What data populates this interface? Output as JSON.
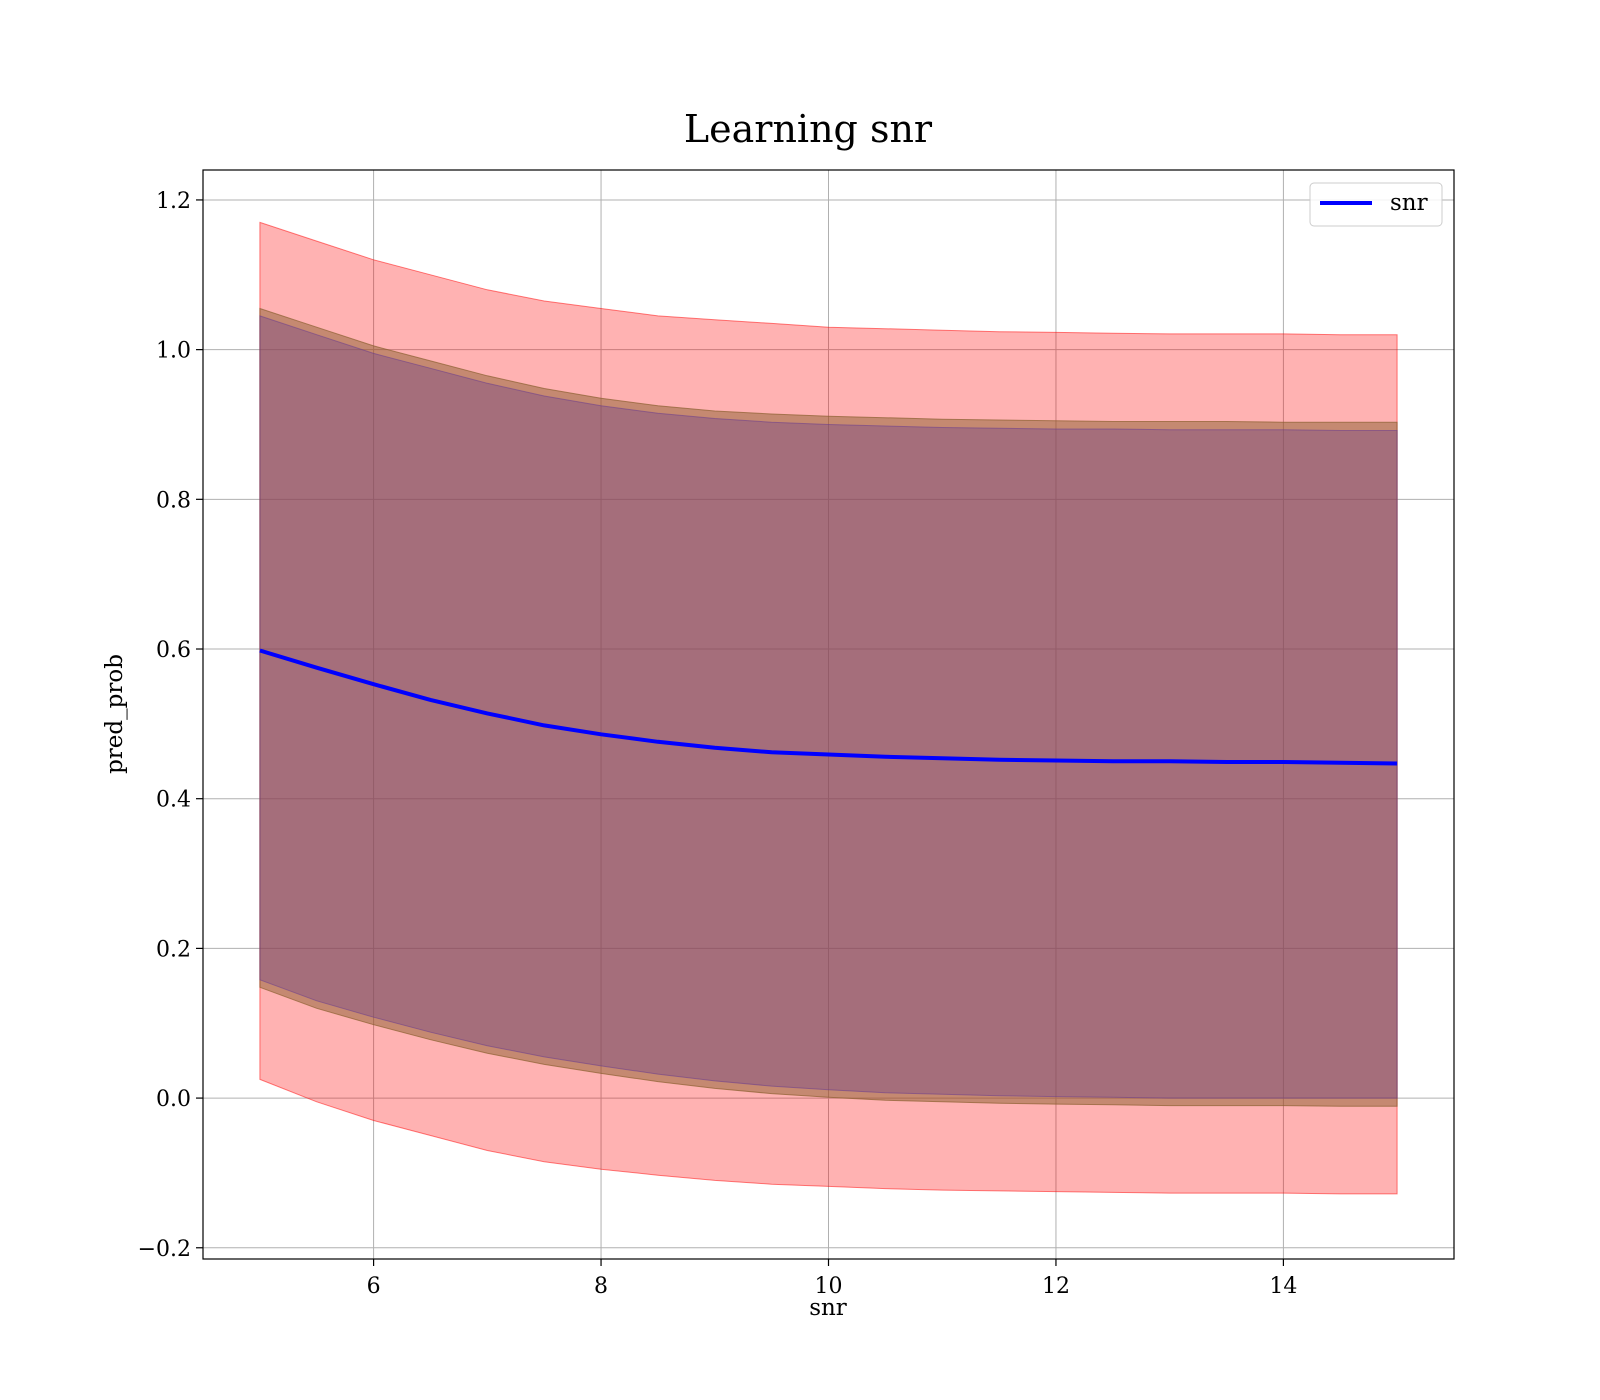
{
  "chart_data": {
    "type": "line",
    "title": "Learning snr",
    "xlabel": "snr",
    "ylabel": "pred_prob",
    "xlim": [
      4.5,
      15.5
    ],
    "ylim": [
      -0.215,
      1.24
    ],
    "xticks": [
      6,
      8,
      10,
      12,
      14
    ],
    "yticks": [
      -0.2,
      0.0,
      0.2,
      0.4,
      0.6,
      0.8,
      1.0,
      1.2
    ],
    "grid": true,
    "legend": {
      "placement": "top-right",
      "entries": [
        "snr"
      ]
    },
    "series": [
      {
        "name": "snr",
        "color": "#0000ff",
        "x": [
          5.0,
          5.5,
          6.0,
          6.5,
          7.0,
          7.5,
          8.0,
          8.5,
          9.0,
          9.5,
          10.0,
          10.5,
          11.0,
          11.5,
          12.0,
          12.5,
          13.0,
          13.5,
          14.0,
          14.5,
          15.0
        ],
        "y": [
          0.598,
          0.575,
          0.553,
          0.532,
          0.514,
          0.498,
          0.486,
          0.476,
          0.468,
          0.462,
          0.459,
          0.456,
          0.454,
          0.452,
          0.451,
          0.45,
          0.45,
          0.449,
          0.449,
          0.448,
          0.447
        ]
      }
    ],
    "bands": [
      {
        "label": "outer",
        "color": "#ff0000",
        "opacity": 0.3,
        "x": [
          5.0,
          5.5,
          6.0,
          6.5,
          7.0,
          7.5,
          8.0,
          8.5,
          9.0,
          9.5,
          10.0,
          10.5,
          11.0,
          11.5,
          12.0,
          12.5,
          13.0,
          13.5,
          14.0,
          14.5,
          15.0
        ],
        "upper": [
          1.17,
          1.145,
          1.12,
          1.1,
          1.08,
          1.065,
          1.055,
          1.045,
          1.04,
          1.035,
          1.03,
          1.028,
          1.026,
          1.024,
          1.023,
          1.022,
          1.021,
          1.021,
          1.021,
          1.02,
          1.02
        ],
        "lower": [
          0.025,
          -0.005,
          -0.03,
          -0.05,
          -0.07,
          -0.085,
          -0.095,
          -0.103,
          -0.11,
          -0.115,
          -0.118,
          -0.121,
          -0.123,
          -0.124,
          -0.125,
          -0.126,
          -0.127,
          -0.127,
          -0.127,
          -0.128,
          -0.128
        ]
      },
      {
        "label": "middle",
        "color": "#8b6030",
        "opacity": 0.5,
        "x": [
          5.0,
          5.5,
          6.0,
          6.5,
          7.0,
          7.5,
          8.0,
          8.5,
          9.0,
          9.5,
          10.0,
          10.5,
          11.0,
          11.5,
          12.0,
          12.5,
          13.0,
          13.5,
          14.0,
          14.5,
          15.0
        ],
        "upper": [
          1.055,
          1.03,
          1.005,
          0.985,
          0.965,
          0.948,
          0.935,
          0.925,
          0.918,
          0.914,
          0.911,
          0.909,
          0.907,
          0.906,
          0.905,
          0.904,
          0.904,
          0.904,
          0.903,
          0.903,
          0.903
        ],
        "lower": [
          0.148,
          0.12,
          0.098,
          0.078,
          0.06,
          0.045,
          0.033,
          0.022,
          0.013,
          0.006,
          0.001,
          -0.003,
          -0.005,
          -0.007,
          -0.008,
          -0.009,
          -0.01,
          -0.01,
          -0.01,
          -0.011,
          -0.011
        ]
      },
      {
        "label": "inner",
        "color": "#6a3d8e",
        "opacity": 0.35,
        "x": [
          5.0,
          5.5,
          6.0,
          6.5,
          7.0,
          7.5,
          8.0,
          8.5,
          9.0,
          9.5,
          10.0,
          10.5,
          11.0,
          11.5,
          12.0,
          12.5,
          13.0,
          13.5,
          14.0,
          14.5,
          15.0
        ],
        "upper": [
          1.045,
          1.02,
          0.995,
          0.975,
          0.955,
          0.938,
          0.925,
          0.915,
          0.908,
          0.903,
          0.9,
          0.898,
          0.896,
          0.895,
          0.894,
          0.894,
          0.893,
          0.893,
          0.893,
          0.892,
          0.892
        ],
        "lower": [
          0.158,
          0.13,
          0.108,
          0.088,
          0.07,
          0.055,
          0.043,
          0.032,
          0.023,
          0.016,
          0.011,
          0.007,
          0.005,
          0.003,
          0.002,
          0.001,
          0.0,
          0.0,
          0.0,
          0.0,
          0.0
        ]
      }
    ]
  }
}
